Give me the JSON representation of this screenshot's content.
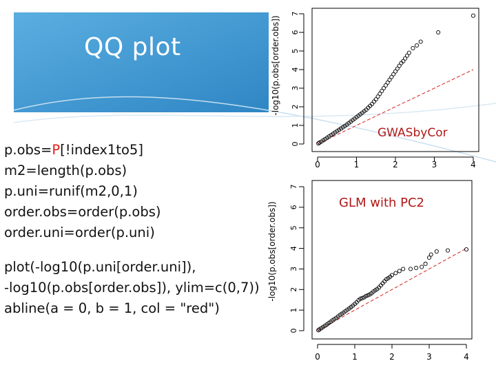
{
  "slide_title": "QQ plot",
  "code_block_1": {
    "line1_prefix": "p.obs=",
    "line1_highlight": "P",
    "line1_suffix": "[!index1to5]",
    "line2": "m2=length(p.obs)",
    "line3": "p.uni=runif(m2,0,1)",
    "line4": "order.obs=order(p.obs)",
    "line5": "order.uni=order(p.uni)"
  },
  "code_block_2": {
    "line1": "plot(-log10(p.uni[order.uni]),",
    "line2": "-log10(p.obs[order.obs]), ylim=c(0,7))",
    "line3": "abline(a = 0, b = 1, col = \"red\")"
  },
  "colors": {
    "title_banner": "#3b96d0",
    "points": "#000000",
    "reference_line": "#d42020",
    "highlight_text": "#e0201a"
  },
  "chart_data": [
    {
      "type": "scatter",
      "title": "",
      "annotation": "GWASbyCor",
      "xlabel": "",
      "ylabel": "-log10(p.obs[order.obs])",
      "xlim": [
        0,
        4
      ],
      "ylim": [
        0,
        7
      ],
      "x_ticks": [
        "0",
        "1",
        "2",
        "3",
        "4"
      ],
      "y_ticks": [
        "0",
        "1",
        "2",
        "3",
        "4",
        "5",
        "6",
        "7"
      ],
      "reference_line": {
        "a": 0,
        "b": 1
      },
      "points": [
        [
          0.02,
          0.03
        ],
        [
          0.05,
          0.07
        ],
        [
          0.1,
          0.13
        ],
        [
          0.15,
          0.2
        ],
        [
          0.2,
          0.27
        ],
        [
          0.25,
          0.34
        ],
        [
          0.3,
          0.41
        ],
        [
          0.35,
          0.48
        ],
        [
          0.4,
          0.55
        ],
        [
          0.45,
          0.62
        ],
        [
          0.5,
          0.69
        ],
        [
          0.55,
          0.76
        ],
        [
          0.6,
          0.83
        ],
        [
          0.65,
          0.9
        ],
        [
          0.7,
          0.97
        ],
        [
          0.75,
          1.04
        ],
        [
          0.8,
          1.12
        ],
        [
          0.85,
          1.2
        ],
        [
          0.9,
          1.28
        ],
        [
          0.95,
          1.36
        ],
        [
          1.0,
          1.44
        ],
        [
          1.05,
          1.52
        ],
        [
          1.1,
          1.6
        ],
        [
          1.15,
          1.68
        ],
        [
          1.2,
          1.76
        ],
        [
          1.25,
          1.84
        ],
        [
          1.3,
          1.95
        ],
        [
          1.35,
          2.05
        ],
        [
          1.4,
          2.15
        ],
        [
          1.45,
          2.28
        ],
        [
          1.5,
          2.4
        ],
        [
          1.55,
          2.55
        ],
        [
          1.6,
          2.7
        ],
        [
          1.65,
          2.85
        ],
        [
          1.7,
          3.0
        ],
        [
          1.75,
          3.15
        ],
        [
          1.8,
          3.3
        ],
        [
          1.85,
          3.45
        ],
        [
          1.9,
          3.6
        ],
        [
          1.95,
          3.75
        ],
        [
          2.0,
          3.9
        ],
        [
          2.05,
          4.05
        ],
        [
          2.1,
          4.2
        ],
        [
          2.15,
          4.35
        ],
        [
          2.2,
          4.45
        ],
        [
          2.25,
          4.6
        ],
        [
          2.3,
          4.75
        ],
        [
          2.35,
          4.9
        ],
        [
          2.45,
          5.15
        ],
        [
          2.55,
          5.3
        ],
        [
          2.65,
          5.5
        ],
        [
          3.1,
          6.0
        ],
        [
          4.0,
          6.9
        ]
      ]
    },
    {
      "type": "scatter",
      "title": "",
      "annotation": "GLM with PC2",
      "xlabel": "",
      "ylabel": "-log10(p.obs[order.obs])",
      "xlim": [
        0,
        4
      ],
      "ylim": [
        0,
        7
      ],
      "x_ticks": [
        "0",
        "1",
        "2",
        "3",
        "4"
      ],
      "y_ticks": [
        "0",
        "1",
        "2",
        "3",
        "4",
        "5",
        "6",
        "7"
      ],
      "reference_line": {
        "a": 0,
        "b": 1
      },
      "points": [
        [
          0.02,
          0.02
        ],
        [
          0.05,
          0.06
        ],
        [
          0.1,
          0.12
        ],
        [
          0.15,
          0.18
        ],
        [
          0.2,
          0.24
        ],
        [
          0.25,
          0.3
        ],
        [
          0.3,
          0.37
        ],
        [
          0.35,
          0.43
        ],
        [
          0.4,
          0.5
        ],
        [
          0.45,
          0.56
        ],
        [
          0.5,
          0.62
        ],
        [
          0.55,
          0.69
        ],
        [
          0.6,
          0.76
        ],
        [
          0.65,
          0.82
        ],
        [
          0.7,
          0.88
        ],
        [
          0.75,
          0.95
        ],
        [
          0.8,
          1.02
        ],
        [
          0.85,
          1.08
        ],
        [
          0.9,
          1.15
        ],
        [
          0.95,
          1.22
        ],
        [
          1.0,
          1.3
        ],
        [
          1.05,
          1.38
        ],
        [
          1.1,
          1.48
        ],
        [
          1.15,
          1.55
        ],
        [
          1.2,
          1.58
        ],
        [
          1.25,
          1.62
        ],
        [
          1.3,
          1.68
        ],
        [
          1.35,
          1.72
        ],
        [
          1.4,
          1.76
        ],
        [
          1.45,
          1.82
        ],
        [
          1.5,
          1.9
        ],
        [
          1.55,
          1.96
        ],
        [
          1.6,
          2.02
        ],
        [
          1.65,
          2.1
        ],
        [
          1.7,
          2.2
        ],
        [
          1.75,
          2.3
        ],
        [
          1.8,
          2.4
        ],
        [
          1.85,
          2.5
        ],
        [
          1.9,
          2.55
        ],
        [
          1.95,
          2.62
        ],
        [
          2.0,
          2.7
        ],
        [
          2.1,
          2.8
        ],
        [
          2.2,
          2.9
        ],
        [
          2.3,
          3.0
        ],
        [
          2.5,
          3.0
        ],
        [
          2.65,
          3.05
        ],
        [
          2.8,
          3.1
        ],
        [
          2.9,
          3.25
        ],
        [
          3.0,
          3.55
        ],
        [
          3.05,
          3.7
        ],
        [
          3.2,
          3.85
        ],
        [
          3.5,
          3.9
        ],
        [
          4.0,
          3.95
        ]
      ]
    }
  ]
}
